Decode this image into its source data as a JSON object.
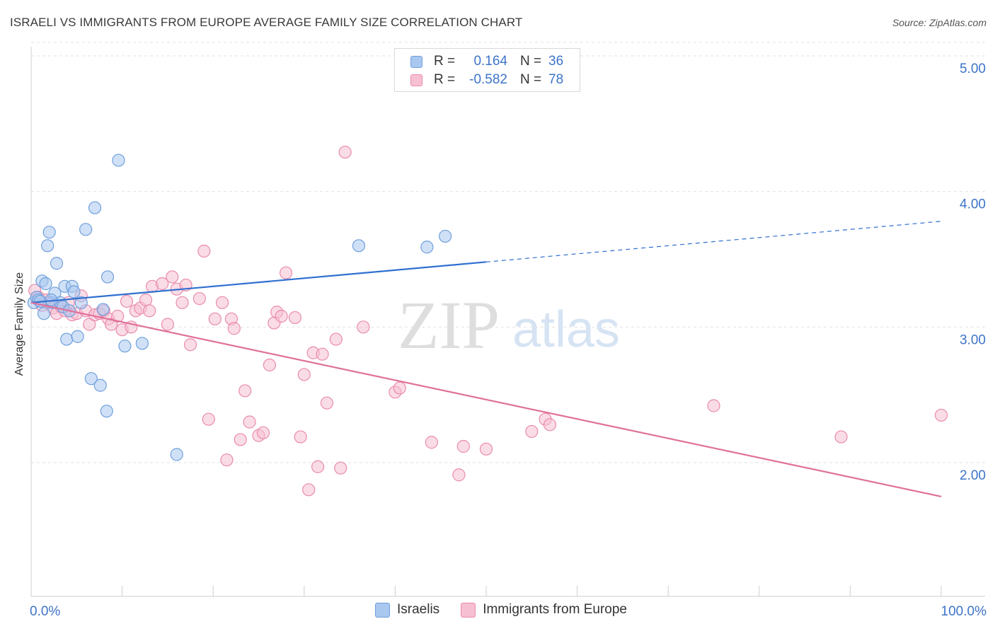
{
  "header": {
    "title": "ISRAELI VS IMMIGRANTS FROM EUROPE AVERAGE FAMILY SIZE CORRELATION CHART",
    "source": "Source: ZipAtlas.com"
  },
  "watermark": {
    "zip": "ZIP",
    "atlas": "atlas"
  },
  "colors": {
    "israelis_fill": "#a9c8f0",
    "israelis_stroke": "#6f9fdc",
    "israelis_line": "#2f6fd0",
    "europe_fill": "#f6bfd2",
    "europe_stroke": "#e98bac",
    "europe_line": "#e0709a",
    "tick_label": "#3d74c8"
  },
  "legend": {
    "rows": [
      {
        "r_label": "R =",
        "r_value": "0.164",
        "n_label": "N =",
        "n_value": "36"
      },
      {
        "r_label": "R =",
        "r_value": "-0.582",
        "n_label": "N =",
        "n_value": "78"
      }
    ],
    "bottom": [
      "Israelis",
      "Immigrants from Europe"
    ]
  },
  "chart_data": {
    "type": "scatter",
    "title": "ISRAELI VS IMMIGRANTS FROM EUROPE AVERAGE FAMILY SIZE CORRELATION CHART",
    "xlabel": "",
    "ylabel": "Average Family Size",
    "x_tick_labels": [
      "0.0%",
      "100.0%"
    ],
    "y_tick_labels": [
      "2.00",
      "3.00",
      "4.00",
      "5.00"
    ],
    "y_ticks": [
      2,
      3,
      4,
      5
    ],
    "xlim": [
      0,
      100
    ],
    "ylim": [
      1.0,
      5.1
    ],
    "grid": true,
    "legend_position": "top-center",
    "series": [
      {
        "name": "Israelis",
        "r": 0.164,
        "n": 36,
        "trend": {
          "x_start": 0,
          "y_start": 3.18,
          "x_solid_end": 50,
          "y_solid_end": 3.48,
          "x_dashed_end": 100,
          "y_dashed_end": 3.78
        },
        "points": [
          [
            0.3,
            3.18
          ],
          [
            0.6,
            3.22
          ],
          [
            0.8,
            3.2
          ],
          [
            1.0,
            3.19
          ],
          [
            1.2,
            3.34
          ],
          [
            1.4,
            3.1
          ],
          [
            1.6,
            3.32
          ],
          [
            1.8,
            3.6
          ],
          [
            2.0,
            3.7
          ],
          [
            2.3,
            3.18
          ],
          [
            2.6,
            3.25
          ],
          [
            2.8,
            3.47
          ],
          [
            3.2,
            3.18
          ],
          [
            3.5,
            3.15
          ],
          [
            3.7,
            3.3
          ],
          [
            3.9,
            2.91
          ],
          [
            4.2,
            3.12
          ],
          [
            4.5,
            3.3
          ],
          [
            4.7,
            3.26
          ],
          [
            5.1,
            2.93
          ],
          [
            5.5,
            3.18
          ],
          [
            6.0,
            3.72
          ],
          [
            6.6,
            2.62
          ],
          [
            7.0,
            3.88
          ],
          [
            7.6,
            2.57
          ],
          [
            7.9,
            3.13
          ],
          [
            8.3,
            2.38
          ],
          [
            8.4,
            3.37
          ],
          [
            9.6,
            4.23
          ],
          [
            10.3,
            2.86
          ],
          [
            12.2,
            2.88
          ],
          [
            16.0,
            2.06
          ],
          [
            36.0,
            3.6
          ],
          [
            43.5,
            3.59
          ],
          [
            45.5,
            3.67
          ],
          [
            2.2,
            3.2
          ]
        ]
      },
      {
        "name": "Immigrants from Europe",
        "r": -0.582,
        "n": 78,
        "trend": {
          "x_start": 0,
          "y_start": 3.18,
          "x_end": 100,
          "y_end": 1.75
        },
        "points": [
          [
            0.4,
            3.27
          ],
          [
            0.8,
            3.22
          ],
          [
            1.2,
            3.16
          ],
          [
            1.6,
            3.2
          ],
          [
            2.0,
            3.18
          ],
          [
            2.4,
            3.14
          ],
          [
            2.8,
            3.1
          ],
          [
            3.3,
            3.15
          ],
          [
            3.7,
            3.12
          ],
          [
            4.1,
            3.18
          ],
          [
            4.5,
            3.09
          ],
          [
            5.0,
            3.1
          ],
          [
            5.5,
            3.23
          ],
          [
            6.0,
            3.12
          ],
          [
            6.4,
            3.02
          ],
          [
            7.0,
            3.09
          ],
          [
            7.5,
            3.1
          ],
          [
            8.0,
            3.12
          ],
          [
            8.5,
            3.06
          ],
          [
            8.8,
            3.02
          ],
          [
            9.5,
            3.08
          ],
          [
            10.0,
            2.98
          ],
          [
            10.5,
            3.19
          ],
          [
            11.0,
            3.0
          ],
          [
            11.5,
            3.12
          ],
          [
            12.0,
            3.14
          ],
          [
            12.6,
            3.2
          ],
          [
            13.0,
            3.12
          ],
          [
            13.3,
            3.3
          ],
          [
            14.4,
            3.32
          ],
          [
            15.0,
            3.02
          ],
          [
            15.5,
            3.37
          ],
          [
            16.0,
            3.28
          ],
          [
            16.6,
            3.18
          ],
          [
            17.0,
            3.31
          ],
          [
            17.5,
            2.87
          ],
          [
            18.5,
            3.21
          ],
          [
            19.0,
            3.56
          ],
          [
            19.5,
            2.32
          ],
          [
            20.2,
            3.06
          ],
          [
            21.0,
            3.18
          ],
          [
            21.5,
            2.02
          ],
          [
            22.0,
            3.06
          ],
          [
            22.3,
            2.99
          ],
          [
            23.0,
            2.17
          ],
          [
            23.5,
            2.53
          ],
          [
            24.0,
            2.3
          ],
          [
            25.0,
            2.2
          ],
          [
            25.5,
            2.22
          ],
          [
            26.2,
            2.72
          ],
          [
            26.7,
            3.03
          ],
          [
            27.0,
            3.11
          ],
          [
            27.5,
            3.08
          ],
          [
            28.0,
            3.4
          ],
          [
            29.0,
            3.07
          ],
          [
            29.6,
            2.19
          ],
          [
            30.0,
            2.65
          ],
          [
            30.5,
            1.8
          ],
          [
            31.0,
            2.81
          ],
          [
            31.5,
            1.97
          ],
          [
            32.0,
            2.8
          ],
          [
            32.5,
            2.44
          ],
          [
            33.5,
            2.91
          ],
          [
            34.0,
            1.96
          ],
          [
            34.5,
            4.29
          ],
          [
            36.5,
            3.0
          ],
          [
            40.0,
            2.52
          ],
          [
            40.5,
            2.55
          ],
          [
            44.0,
            2.15
          ],
          [
            47.0,
            1.91
          ],
          [
            47.5,
            2.12
          ],
          [
            50.0,
            2.1
          ],
          [
            55.0,
            2.23
          ],
          [
            56.5,
            2.32
          ],
          [
            57.0,
            2.28
          ],
          [
            75.0,
            2.42
          ],
          [
            89.0,
            2.19
          ],
          [
            100.0,
            2.35
          ]
        ]
      }
    ]
  }
}
